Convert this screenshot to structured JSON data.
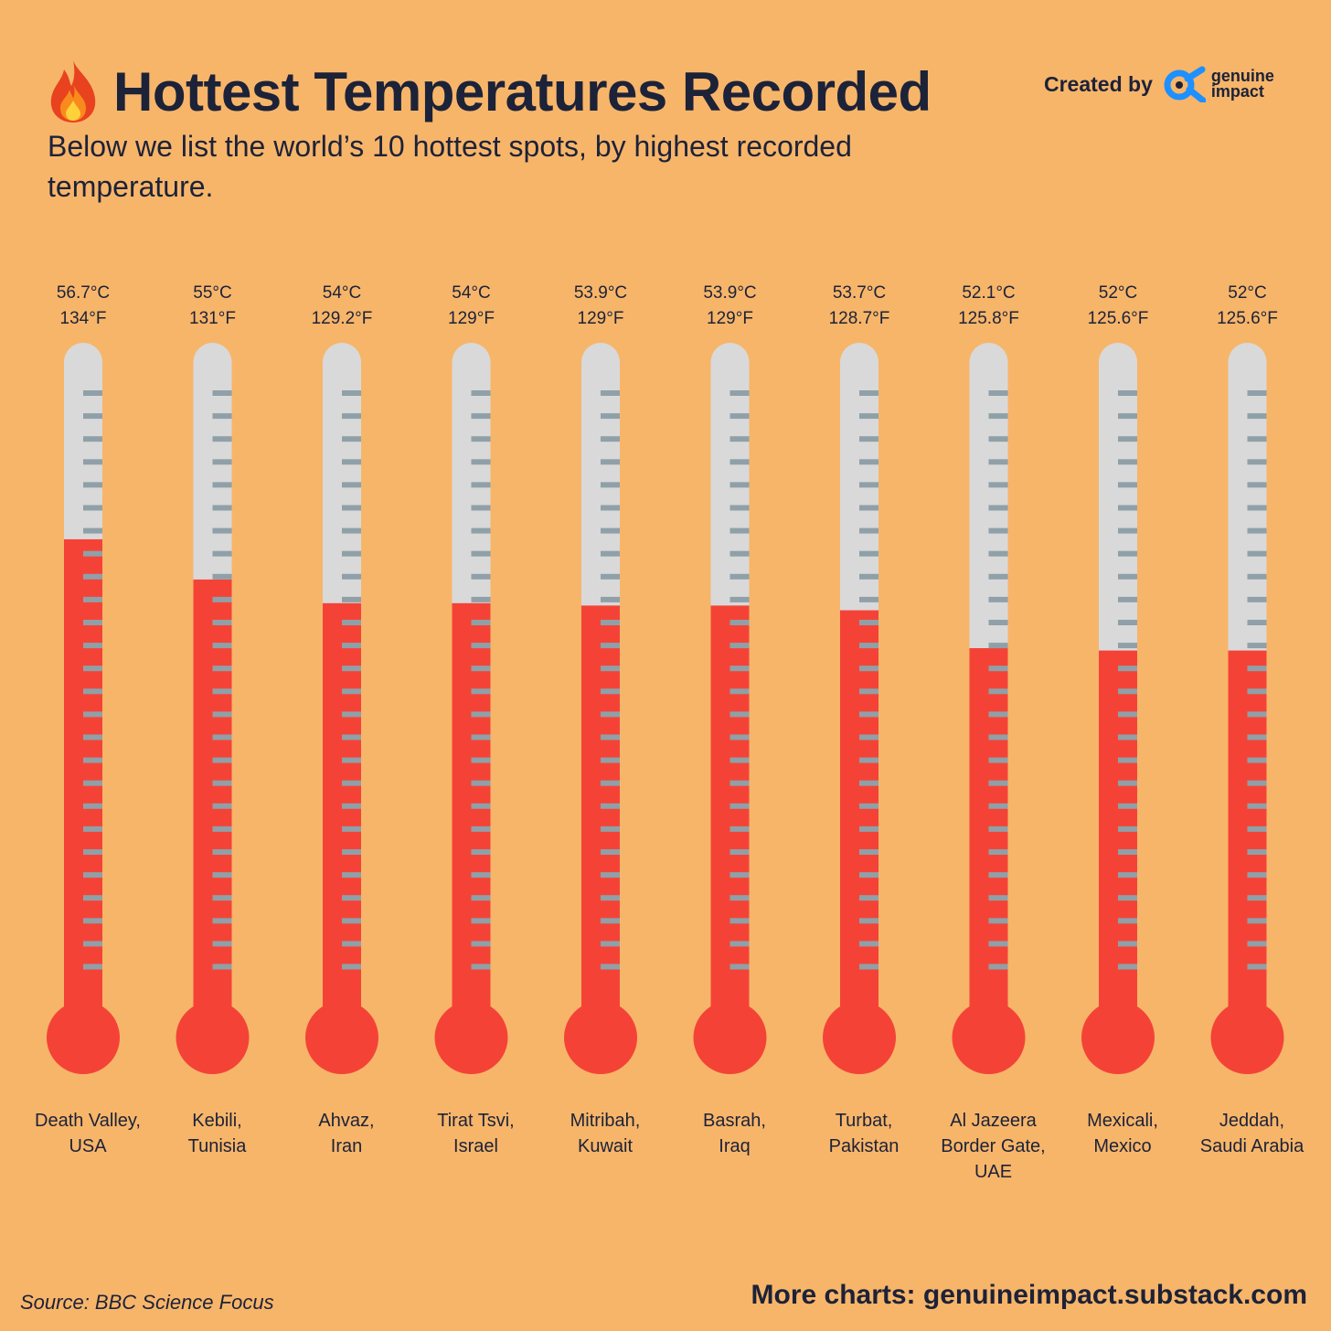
{
  "header": {
    "title": "Hottest Temperatures Recorded",
    "subtitle": "Below we list the world’s 10 hottest spots, by highest recorded temperature.",
    "title_icon": "fire-icon",
    "created_by_label": "Created by",
    "logo_line1": "genuine",
    "logo_line2": "impact"
  },
  "footer": {
    "source": "Source: BBC Science Focus",
    "more_charts": "More charts: genuineimpact.substack.com"
  },
  "colors": {
    "background": "#F7B56A",
    "mercury": "#F44336",
    "tube": "#D9D9D9",
    "ticks": "#8FA0A8",
    "text": "#1C2238",
    "logo_blue": "#1E90FF"
  },
  "chart_data": {
    "type": "bar",
    "style": "thermometer",
    "categories": [
      [
        "Death Valley,",
        "USA"
      ],
      [
        "Kebili,",
        "Tunisia"
      ],
      [
        "Ahvaz,",
        "Iran"
      ],
      [
        "Tirat Tsvi,",
        "Israel"
      ],
      [
        "Mitribah,",
        "Kuwait"
      ],
      [
        "Basrah,",
        "Iraq"
      ],
      [
        "Turbat,",
        "Pakistan"
      ],
      [
        "Al Jazeera",
        "Border Gate,",
        "UAE"
      ],
      [
        "Mexicali,",
        "Mexico"
      ],
      [
        "Jeddah,",
        "Saudi Arabia"
      ]
    ],
    "series": [
      {
        "values": [
          56.7,
          55,
          54,
          54,
          53.9,
          53.9,
          53.7,
          52.1,
          52,
          52
        ],
        "labels_c": [
          "56.7°C",
          "55°C",
          "54°C",
          "54°C",
          "53.9°C",
          "53.9°C",
          "53.7°C",
          "52.1°C",
          "52°C",
          "52°C"
        ],
        "labels_f": [
          "134°F",
          "131°F",
          "129.2°F",
          "129°F",
          "129°F",
          "129°F",
          "128.7°F",
          "125.8°F",
          "125.6°F",
          "125.6°F"
        ]
      }
    ],
    "ylim": [
      37,
      65
    ]
  }
}
